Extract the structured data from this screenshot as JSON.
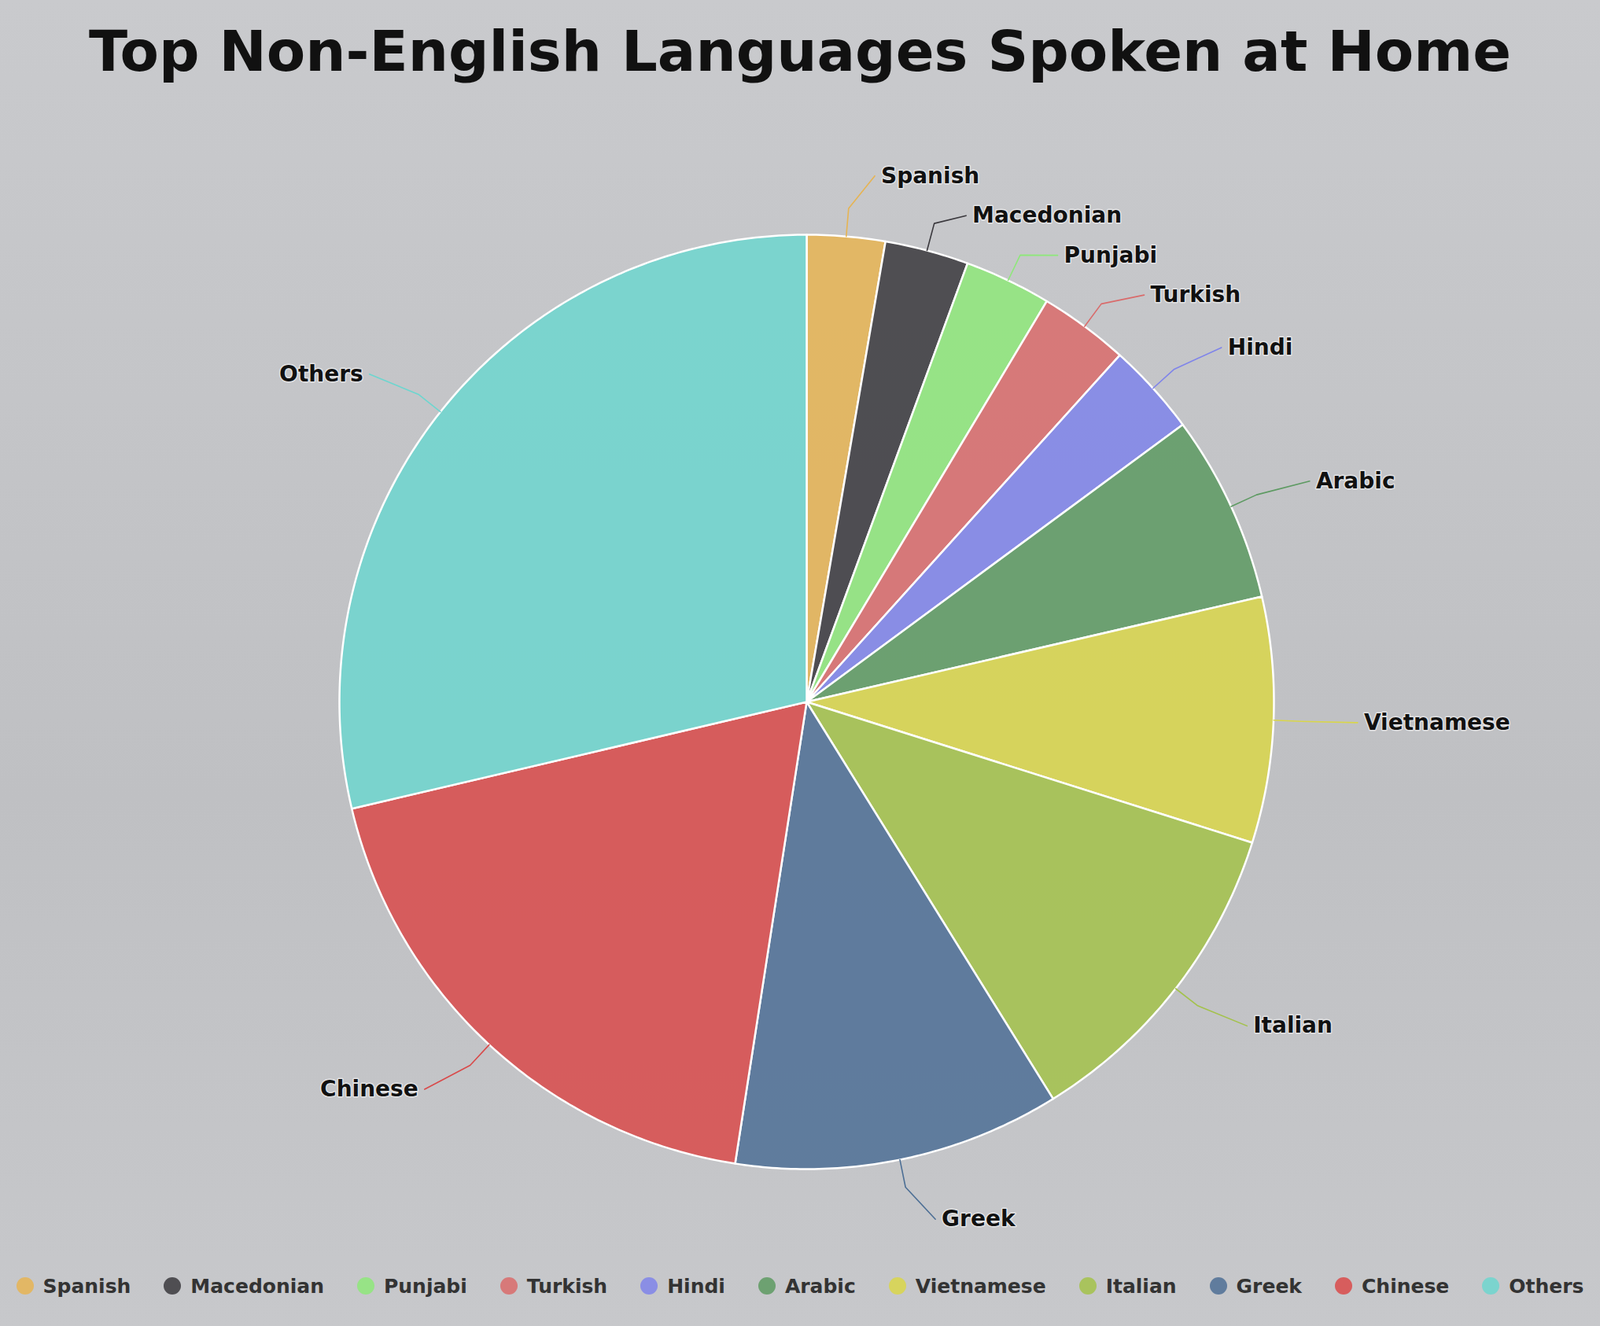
{
  "chart_data": {
    "type": "pie",
    "title": "Top Non-English Languages Spoken at Home",
    "categories": [
      "Spanish",
      "Macedonian",
      "Punjabi",
      "Turkish",
      "Hindi",
      "Arabic",
      "Vietnamese",
      "Italian",
      "Greek",
      "Chinese",
      "Others"
    ],
    "values": [
      2.7,
      2.9,
      3.0,
      3.1,
      3.2,
      6.5,
      8.5,
      11.3,
      11.3,
      18.9,
      28.7
    ],
    "colors": [
      "#e6b453",
      "#3a383d",
      "#8ee87a",
      "#d96b6b",
      "#7f84ea",
      "#5d9a62",
      "#d9d64a",
      "#a3c24a",
      "#4d6f95",
      "#d94a4a",
      "#6dd6cf"
    ],
    "legend": "bottom"
  }
}
